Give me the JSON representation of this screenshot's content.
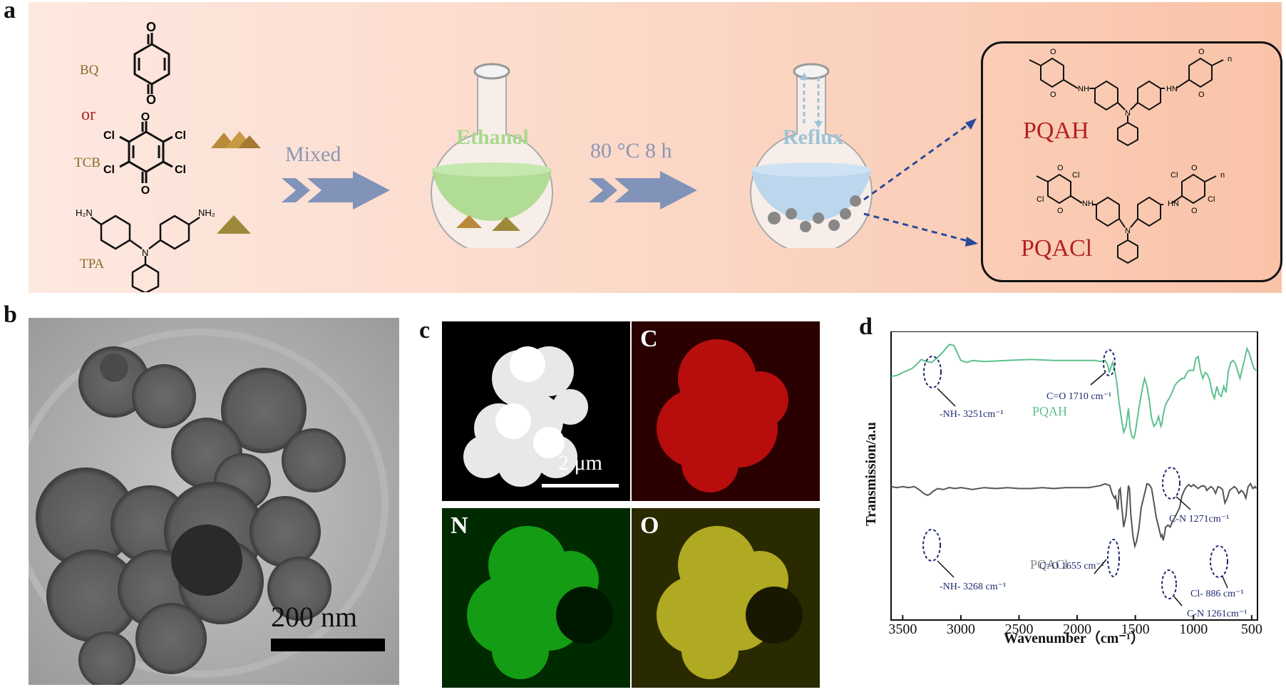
{
  "panel_labels": {
    "a": "a",
    "b": "b",
    "c": "c",
    "d": "d"
  },
  "scheme": {
    "reagents": {
      "bq": "BQ",
      "or": "or",
      "tcb": "TCB",
      "tpa": "TPA"
    },
    "atoms": {
      "o": "O",
      "cl": "Cl",
      "n": "N",
      "nh2": "NH₂",
      "h2n": "H₂N",
      "nh": "NH",
      "hn": "HN",
      "n_sub": "n"
    },
    "steps": {
      "mixed": "Mixed",
      "condition": "80 °C 8 h"
    },
    "flask_labels": {
      "ethanol": "Ethanol",
      "reflux": "Reflux"
    },
    "products": [
      "PQAH",
      "PQACl"
    ],
    "colors": {
      "ethanol": "#a8d98c",
      "reflux": "#bcd6ee",
      "arrow": "#8193b8",
      "product_text": "#b22222"
    }
  },
  "tem": {
    "scale_label": "200 nm"
  },
  "eds": {
    "scale_label": "2 μm",
    "maps": [
      "C",
      "N",
      "O"
    ],
    "colors": {
      "C": "#d01010",
      "N": "#18b018",
      "O": "#c8c028"
    }
  },
  "ftir": {
    "xlabel": "Wavenumber（cm⁻¹）",
    "ylabel": "Transmission/a.u",
    "xticks": [
      "3500",
      "3000",
      "2500",
      "2000",
      "1500",
      "1000",
      "500"
    ],
    "series_labels": {
      "pqah": "PQAH",
      "pqacl": "PQACl"
    },
    "annotations": {
      "pqah_nh": "-NH- 3251cm⁻¹",
      "pqah_co": "C=O 1710 cm⁻¹",
      "pqah_cn": "C-N 1271cm⁻¹",
      "pqacl_nh": "-NH- 3268 cm⁻¹",
      "pqacl_co": "C=O 1655 cm⁻¹",
      "pqacl_ccl": "Cl- 886 cm⁻¹",
      "pqacl_cn": "C-N 1261cm⁻¹"
    },
    "colors": {
      "pqah": "#5ec18e",
      "pqacl": "#555555",
      "annot": "#1e2a6e"
    }
  },
  "chart_data": {
    "type": "line",
    "xlabel": "Wavenumber（cm⁻¹）",
    "ylabel": "Transmission/a.u",
    "xlim": [
      3600,
      450
    ],
    "series": [
      {
        "name": "PQAH",
        "x": [
          3600,
          3550,
          3480,
          3420,
          3380,
          3340,
          3300,
          3251,
          3200,
          3150,
          3100,
          3060,
          3000,
          2950,
          2900,
          2800,
          2600,
          2400,
          2200,
          2000,
          1850,
          1800,
          1760,
          1735,
          1725,
          1710,
          1695,
          1680,
          1660,
          1640,
          1620,
          1600,
          1580,
          1560,
          1545,
          1530,
          1515,
          1505,
          1495,
          1470,
          1440,
          1420,
          1400,
          1380,
          1360,
          1340,
          1320,
          1300,
          1290,
          1280,
          1271,
          1260,
          1240,
          1220,
          1200,
          1180,
          1160,
          1140,
          1120,
          1100,
          1080,
          1060,
          1040,
          1020,
          1000,
          980,
          960,
          940,
          920,
          900,
          880,
          860,
          840,
          820,
          800,
          780,
          760,
          740,
          720,
          700,
          680,
          660,
          640,
          620,
          600,
          580,
          560,
          540,
          520,
          500,
          480,
          460
        ],
        "y": [
          0.62,
          0.63,
          0.67,
          0.7,
          0.74,
          0.79,
          0.77,
          0.76,
          0.81,
          0.87,
          0.94,
          0.93,
          0.78,
          0.76,
          0.78,
          0.77,
          0.78,
          0.79,
          0.78,
          0.78,
          0.78,
          0.77,
          0.78,
          0.73,
          0.66,
          0.71,
          0.76,
          0.7,
          0.56,
          0.36,
          0.2,
          0.06,
          0.12,
          0.3,
          0.1,
          0.02,
          0.0,
          0.03,
          0.1,
          0.3,
          0.5,
          0.6,
          0.52,
          0.38,
          0.2,
          0.12,
          0.15,
          0.22,
          0.17,
          0.12,
          0.15,
          0.24,
          0.34,
          0.38,
          0.42,
          0.47,
          0.53,
          0.56,
          0.58,
          0.6,
          0.6,
          0.65,
          0.68,
          0.68,
          0.68,
          0.8,
          0.82,
          0.68,
          0.6,
          0.66,
          0.64,
          0.58,
          0.46,
          0.4,
          0.52,
          0.44,
          0.42,
          0.52,
          0.46,
          0.68,
          0.76,
          0.78,
          0.75,
          0.67,
          0.6,
          0.7,
          0.8,
          0.9,
          0.85,
          0.77,
          0.7,
          0.68
        ]
      },
      {
        "name": "PQACl",
        "x": [
          3600,
          3550,
          3500,
          3450,
          3400,
          3360,
          3320,
          3290,
          3268,
          3240,
          3200,
          3150,
          3100,
          3050,
          3000,
          2900,
          2800,
          2700,
          2600,
          2500,
          2400,
          2300,
          2200,
          2100,
          2000,
          1900,
          1850,
          1800,
          1760,
          1720,
          1700,
          1680,
          1670,
          1660,
          1655,
          1650,
          1640,
          1630,
          1620,
          1600,
          1580,
          1560,
          1550,
          1540,
          1520,
          1505,
          1490,
          1470,
          1450,
          1430,
          1400,
          1380,
          1360,
          1340,
          1320,
          1300,
          1290,
          1280,
          1270,
          1261,
          1250,
          1240,
          1220,
          1200,
          1180,
          1160,
          1140,
          1120,
          1100,
          1080,
          1060,
          1040,
          1020,
          1000,
          980,
          960,
          940,
          920,
          900,
          886,
          870,
          850,
          830,
          810,
          790,
          770,
          750,
          730,
          710,
          690,
          670,
          650,
          630,
          610,
          590,
          570,
          550,
          530,
          510,
          490,
          470,
          460
        ],
        "y": [
          0.72,
          0.71,
          0.72,
          0.71,
          0.72,
          0.69,
          0.65,
          0.63,
          0.64,
          0.67,
          0.7,
          0.69,
          0.71,
          0.7,
          0.71,
          0.69,
          0.71,
          0.7,
          0.71,
          0.7,
          0.7,
          0.71,
          0.7,
          0.71,
          0.71,
          0.71,
          0.72,
          0.73,
          0.75,
          0.73,
          0.65,
          0.6,
          0.62,
          0.55,
          0.5,
          0.48,
          0.68,
          0.7,
          0.55,
          0.3,
          0.42,
          0.73,
          0.7,
          0.45,
          0.2,
          0.1,
          0.15,
          0.28,
          0.5,
          0.6,
          0.75,
          0.74,
          0.7,
          0.55,
          0.4,
          0.3,
          0.25,
          0.2,
          0.22,
          0.16,
          0.22,
          0.3,
          0.32,
          0.3,
          0.36,
          0.4,
          0.45,
          0.5,
          0.62,
          0.68,
          0.72,
          0.74,
          0.72,
          0.74,
          0.72,
          0.7,
          0.72,
          0.73,
          0.72,
          0.68,
          0.7,
          0.72,
          0.7,
          0.65,
          0.72,
          0.71,
          0.69,
          0.55,
          0.6,
          0.68,
          0.7,
          0.72,
          0.7,
          0.65,
          0.68,
          0.66,
          0.6,
          0.72,
          0.75,
          0.7,
          0.72,
          0.7
        ]
      }
    ]
  }
}
